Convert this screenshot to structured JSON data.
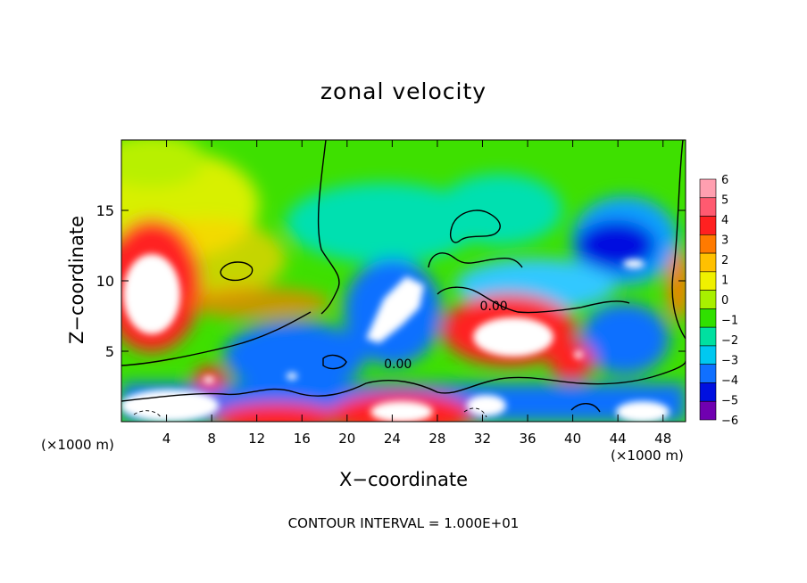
{
  "chart_data": {
    "type": "heatmap",
    "title": "zonal velocity",
    "xlabel": "X−coordinate",
    "ylabel": "Z−coordinate",
    "x_unit_label": "(×1000 m)",
    "footer": "CONTOUR INTERVAL = 1.000E+01",
    "x_ticks": [
      "4",
      "8",
      "12",
      "16",
      "20",
      "24",
      "28",
      "32",
      "36",
      "40",
      "44",
      "48"
    ],
    "x_tick_values": [
      4,
      8,
      12,
      16,
      20,
      24,
      28,
      32,
      36,
      40,
      44,
      48
    ],
    "y_ticks": [
      "5",
      "10",
      "15"
    ],
    "y_tick_values": [
      5,
      10,
      15
    ],
    "xlim": [
      0,
      50
    ],
    "ylim": [
      0,
      20
    ],
    "colorbar": {
      "labels": [
        "6",
        "5",
        "4",
        "3",
        "2",
        "1",
        "0",
        "−1",
        "−2",
        "−3",
        "−4",
        "−5",
        "−6"
      ],
      "values": [
        6,
        5,
        4,
        3,
        2,
        1,
        0,
        -1,
        -2,
        -3,
        -4,
        -5,
        -6
      ],
      "colors": [
        "#ff9fb0",
        "#ff5a70",
        "#ff2020",
        "#ff7a00",
        "#ffc000",
        "#f0f000",
        "#a8f000",
        "#30e000",
        "#00e0a0",
        "#00c8f0",
        "#1070ff",
        "#0010e0",
        "#7000b0"
      ]
    },
    "contour_labels": [
      "0.00",
      "0.00"
    ],
    "contour_label_positions": [
      [
        33,
        7.9
      ],
      [
        24.5,
        3.8
      ]
    ],
    "contour_interval": 10
  }
}
